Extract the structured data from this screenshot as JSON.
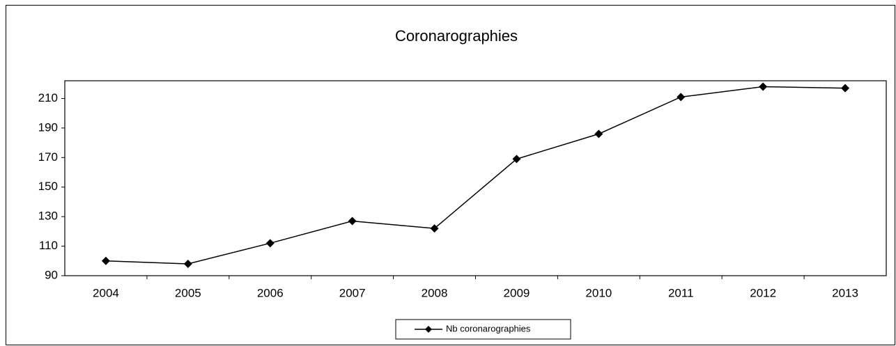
{
  "chart_data": {
    "type": "line",
    "title": "Coronarographies",
    "categories": [
      "2004",
      "2005",
      "2006",
      "2007",
      "2008",
      "2009",
      "2010",
      "2011",
      "2012",
      "2013"
    ],
    "series": [
      {
        "name": "Nb coronarographies",
        "color": "#000000",
        "values": [
          100,
          98,
          112,
          127,
          122,
          169,
          186,
          211,
          218,
          217
        ]
      }
    ],
    "ylim": [
      90,
      222
    ],
    "yticks": [
      90,
      110,
      130,
      150,
      170,
      190,
      210
    ],
    "grid": false,
    "legend": "bottom"
  }
}
